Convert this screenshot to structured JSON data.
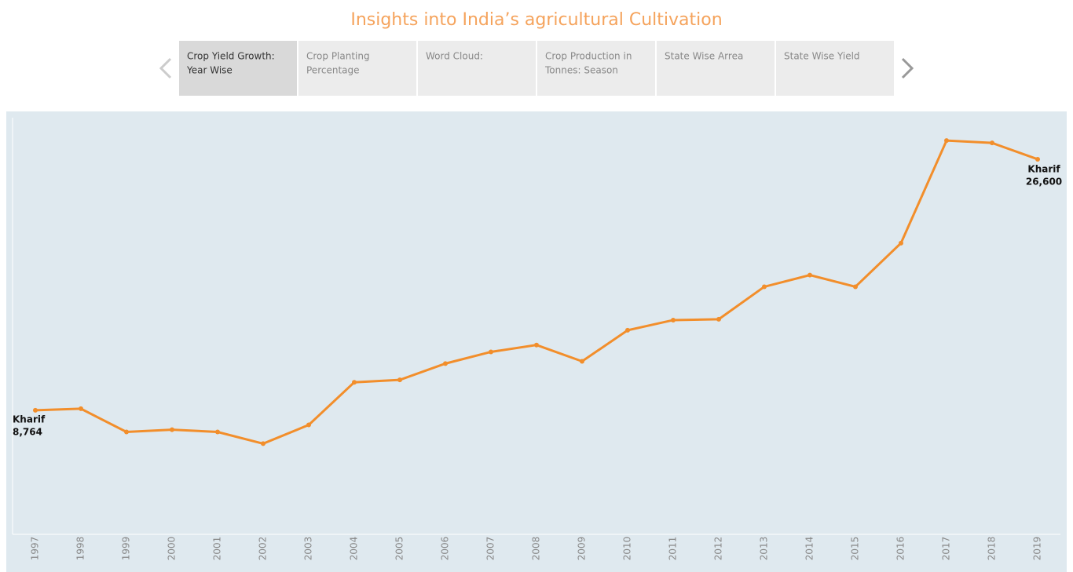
{
  "story": {
    "tabs": [
      {
        "line1": "Crop Yield Growth:",
        "line2": "Year Wise"
      },
      {
        "line1": "Crop Planting",
        "line2": "Percentage"
      },
      {
        "line1": "Word Cloud:"
      },
      {
        "line1": "Crop Production in",
        "line2": "Tonnes: Season"
      },
      {
        "line1": "State Wise Arrea"
      },
      {
        "line1": "State Wise Yield"
      }
    ]
  },
  "chart_data": {
    "type": "line",
    "title": "Insights into India’s  agricultural Cultivation",
    "categories": [
      "1997",
      "1998",
      "1999",
      "2000",
      "2001",
      "2002",
      "2003",
      "2004",
      "2005",
      "2006",
      "2007",
      "2008",
      "2009",
      "2010",
      "2011",
      "2012",
      "2013",
      "2014",
      "2015",
      "2016",
      "2017",
      "2018",
      "2019"
    ],
    "series": [
      {
        "name": "Kharif",
        "color": "#f28e2b",
        "values": [
          8764,
          8870,
          7220,
          7380,
          7220,
          6390,
          7720,
          10750,
          10920,
          12080,
          12910,
          13400,
          12240,
          14450,
          15170,
          15230,
          17540,
          18370,
          17540,
          20640,
          27930,
          27760,
          26600
        ],
        "value_labels": [
          "8,764",
          null,
          null,
          null,
          null,
          null,
          null,
          null,
          null,
          null,
          null,
          null,
          null,
          null,
          null,
          null,
          null,
          null,
          null,
          null,
          null,
          null,
          "26,600"
        ]
      }
    ],
    "ylim": [
      0,
      30000
    ]
  }
}
